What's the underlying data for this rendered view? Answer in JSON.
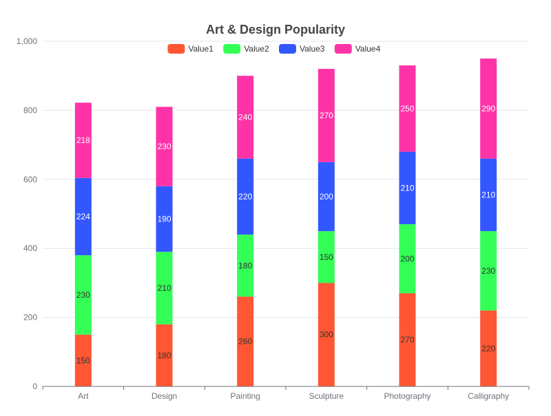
{
  "chart_data": {
    "type": "bar",
    "stacked": true,
    "title": "Art & Design Popularity",
    "categories": [
      "Art",
      "Design",
      "Painting",
      "Sculpture",
      "Photography",
      "Calligraphy"
    ],
    "series": [
      {
        "name": "Value1",
        "color": "#ff5733",
        "label_color": "#333333",
        "values": [
          150,
          180,
          260,
          300,
          270,
          220
        ]
      },
      {
        "name": "Value2",
        "color": "#33ff57",
        "label_color": "#333333",
        "values": [
          230,
          210,
          180,
          150,
          200,
          230
        ]
      },
      {
        "name": "Value3",
        "color": "#3357ff",
        "label_color": "#ffffff",
        "values": [
          224,
          190,
          220,
          200,
          210,
          210
        ]
      },
      {
        "name": "Value4",
        "color": "#ff33a8",
        "label_color": "#ffffff",
        "values": [
          218,
          230,
          240,
          270,
          250,
          290
        ]
      }
    ],
    "ylim": [
      0,
      1000
    ],
    "yticks": [
      "0",
      "200",
      "400",
      "600",
      "800",
      "1,000"
    ],
    "ytick_values": [
      0,
      200,
      400,
      600,
      800,
      1000
    ],
    "grid": true,
    "legend_position": "top-center"
  }
}
